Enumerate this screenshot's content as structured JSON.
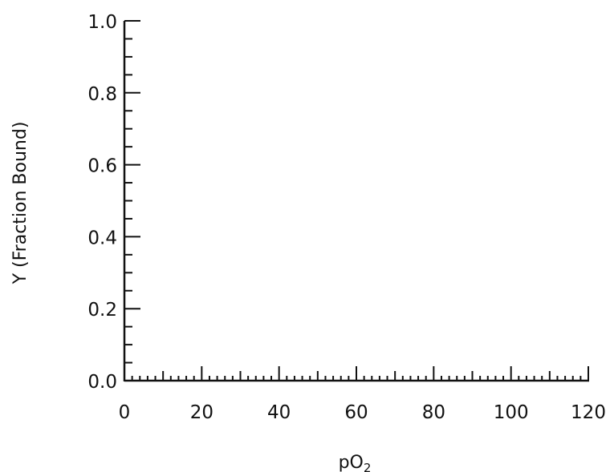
{
  "chart_data": {
    "type": "line",
    "title": "",
    "xlabel": "pO",
    "xlabel_subscript": "2",
    "ylabel": "Y (Fraction Bound)",
    "xlim": [
      0,
      120
    ],
    "ylim": [
      0,
      1.0
    ],
    "x_major_ticks": [
      0,
      20,
      40,
      60,
      80,
      100,
      120
    ],
    "x_tick_labels": [
      "0",
      "20",
      "40",
      "60",
      "80",
      "100",
      "120"
    ],
    "x_minor_step": 2,
    "x_mid_step": 10,
    "y_major_ticks": [
      0.0,
      0.2,
      0.4,
      0.6,
      0.8,
      1.0
    ],
    "y_tick_labels": [
      "0.0",
      "0.2",
      "0.4",
      "0.6",
      "0.8",
      "1.0"
    ],
    "y_minor_step": 0.05,
    "grid": false,
    "series": []
  },
  "colors": {
    "axis": "#111111",
    "background": "#ffffff"
  }
}
